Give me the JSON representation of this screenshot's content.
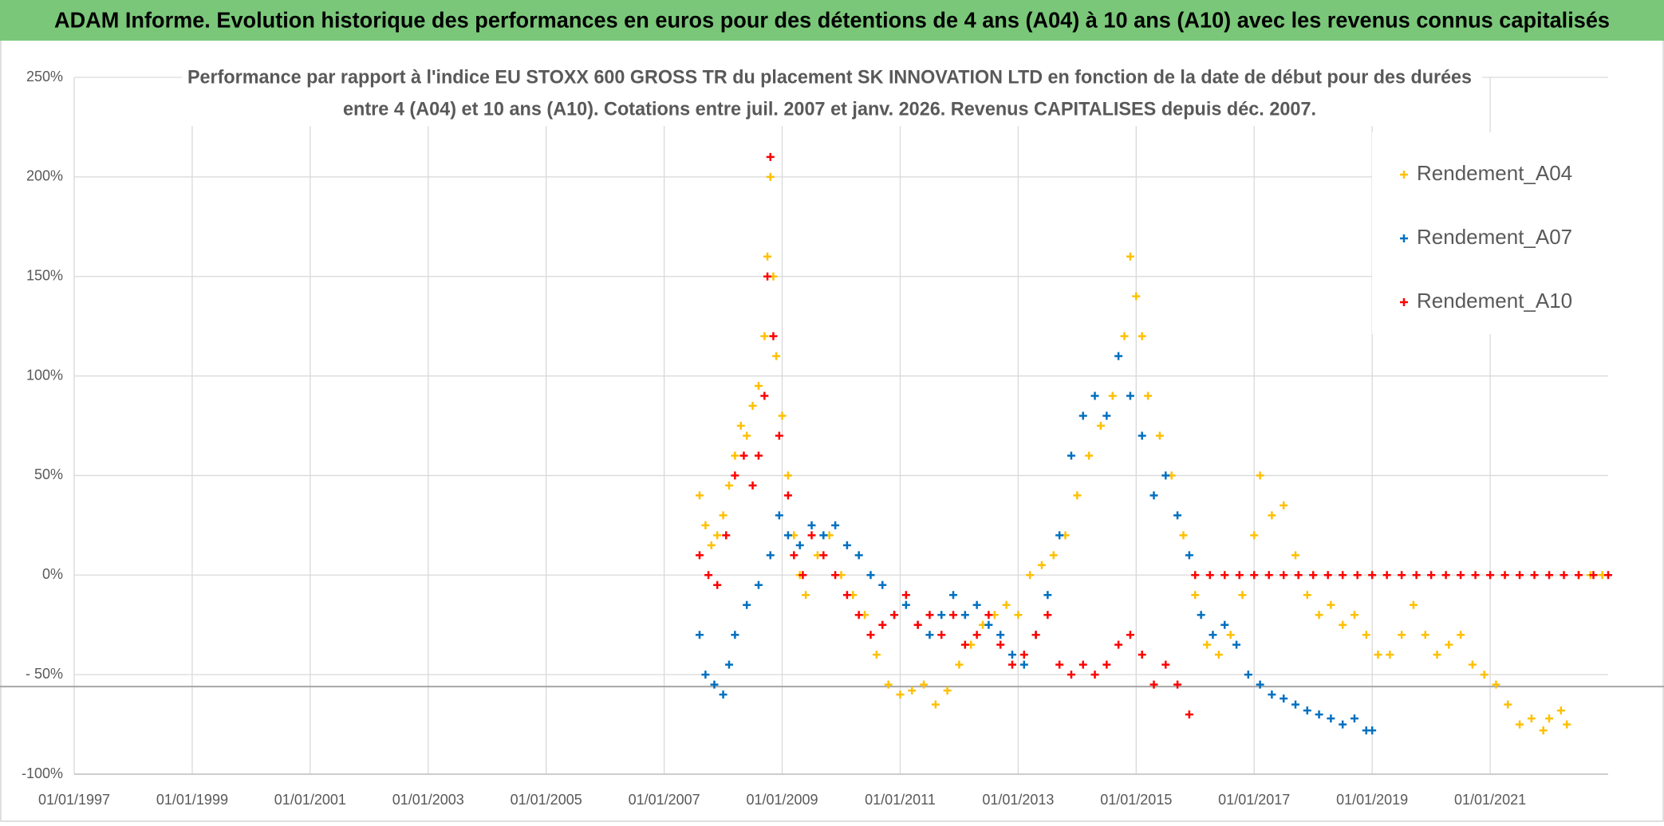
{
  "chart_data": {
    "type": "scatter",
    "title": "ADAM Informe. Evolution historique des performances en euros pour des détentions de 4 ans (A04) à 10 ans (A10) avec les revenus connus capitalisés",
    "subtitle": [
      "Performance par rapport à l'indice EU STOXX 600 GROSS TR  du placement SK INNOVATION LTD en fonction de la date de début pour des durées",
      "entre 4 (A04) et 10 ans (A10). Cotations entre juil. 2007 et janv. 2026. Revenus CAPITALISES depuis déc. 2007."
    ],
    "xlim": [
      1997,
      2023
    ],
    "xticks": [
      {
        "value": 1997,
        "label": "01/01/1997"
      },
      {
        "value": 1999,
        "label": "01/01/1999"
      },
      {
        "value": 2001,
        "label": "01/01/2001"
      },
      {
        "value": 2003,
        "label": "01/01/2003"
      },
      {
        "value": 2005,
        "label": "01/01/2005"
      },
      {
        "value": 2007,
        "label": "01/01/2007"
      },
      {
        "value": 2009,
        "label": "01/01/2009"
      },
      {
        "value": 2011,
        "label": "01/01/2011"
      },
      {
        "value": 2013,
        "label": "01/01/2013"
      },
      {
        "value": 2015,
        "label": "01/01/2015"
      },
      {
        "value": 2017,
        "label": "01/01/2017"
      },
      {
        "value": 2019,
        "label": "01/01/2019"
      },
      {
        "value": 2021,
        "label": "01/01/2021"
      }
    ],
    "ylim": [
      -100,
      250
    ],
    "yticks": [
      {
        "value": -100,
        "label": "-100%"
      },
      {
        "value": -50,
        "label": "- 50%"
      },
      {
        "value": 0,
        "label": "0%"
      },
      {
        "value": 50,
        "label": "50%"
      },
      {
        "value": 100,
        "label": "100%"
      },
      {
        "value": 150,
        "label": "150%"
      },
      {
        "value": 200,
        "label": "200%"
      },
      {
        "value": 250,
        "label": "250%"
      }
    ],
    "grid": true,
    "hline": -56,
    "legend": "upper right",
    "series": [
      {
        "name": "Rendement_A04",
        "color": "#FFC000",
        "x": [
          2007.6,
          2007.7,
          2007.8,
          2007.9,
          2008.0,
          2008.1,
          2008.2,
          2008.3,
          2008.4,
          2008.5,
          2008.6,
          2008.7,
          2008.75,
          2008.8,
          2008.85,
          2008.9,
          2009.0,
          2009.1,
          2009.2,
          2009.3,
          2009.4,
          2009.6,
          2009.8,
          2010.0,
          2010.2,
          2010.4,
          2010.6,
          2010.8,
          2011.0,
          2011.2,
          2011.4,
          2011.6,
          2011.8,
          2012.0,
          2012.2,
          2012.4,
          2012.6,
          2012.8,
          2013.0,
          2013.2,
          2013.4,
          2013.6,
          2013.8,
          2014.0,
          2014.2,
          2014.4,
          2014.6,
          2014.8,
          2014.9,
          2015.0,
          2015.1,
          2015.2,
          2015.4,
          2015.6,
          2015.8,
          2016.0,
          2016.2,
          2016.4,
          2016.6,
          2016.8,
          2017.0,
          2017.1,
          2017.3,
          2017.5,
          2017.7,
          2017.9,
          2018.1,
          2018.3,
          2018.5,
          2018.7,
          2018.9,
          2019.1,
          2019.3,
          2019.5,
          2019.7,
          2019.9,
          2020.1,
          2020.3,
          2020.5,
          2020.7,
          2020.9,
          2021.1,
          2021.3,
          2021.5,
          2021.7,
          2021.9,
          2022.0,
          2022.2,
          2022.3,
          2022.5,
          2022.7,
          2022.9
        ],
        "values": [
          40,
          25,
          15,
          20,
          30,
          45,
          60,
          75,
          70,
          85,
          95,
          120,
          160,
          200,
          150,
          110,
          80,
          50,
          20,
          0,
          -10,
          10,
          20,
          0,
          -10,
          -20,
          -40,
          -55,
          -60,
          -58,
          -55,
          -65,
          -58,
          -45,
          -35,
          -25,
          -20,
          -15,
          -20,
          0,
          5,
          10,
          20,
          40,
          60,
          75,
          90,
          120,
          160,
          140,
          120,
          90,
          70,
          50,
          20,
          -10,
          -35,
          -40,
          -30,
          -10,
          20,
          50,
          30,
          35,
          10,
          -10,
          -20,
          -15,
          -25,
          -20,
          -30,
          -40,
          -40,
          -30,
          -15,
          -30,
          -40,
          -35,
          -30,
          -45,
          -50,
          -55,
          -65,
          -75,
          -72,
          -78,
          -72,
          -68,
          -75,
          0,
          0,
          0
        ]
      },
      {
        "name": "Rendement_A07",
        "color": "#0070C0",
        "x": [
          2007.6,
          2007.7,
          2007.85,
          2008.0,
          2008.1,
          2008.2,
          2008.4,
          2008.6,
          2008.8,
          2008.95,
          2009.1,
          2009.3,
          2009.5,
          2009.7,
          2009.9,
          2010.1,
          2010.3,
          2010.5,
          2010.7,
          2010.9,
          2011.1,
          2011.3,
          2011.5,
          2011.7,
          2011.9,
          2012.1,
          2012.3,
          2012.5,
          2012.7,
          2012.9,
          2013.1,
          2013.3,
          2013.5,
          2013.7,
          2013.9,
          2014.1,
          2014.3,
          2014.5,
          2014.7,
          2014.9,
          2015.1,
          2015.3,
          2015.5,
          2015.7,
          2015.9,
          2016.1,
          2016.3,
          2016.5,
          2016.7,
          2016.9,
          2017.1,
          2017.3,
          2017.5,
          2017.7,
          2017.9,
          2018.1,
          2018.3,
          2018.5,
          2018.7,
          2018.9,
          2019.0
        ],
        "values": [
          -30,
          -50,
          -55,
          -60,
          -45,
          -30,
          -15,
          -5,
          10,
          30,
          20,
          15,
          25,
          20,
          25,
          15,
          10,
          0,
          -5,
          -20,
          -15,
          -25,
          -30,
          -20,
          -10,
          -20,
          -15,
          -25,
          -30,
          -40,
          -45,
          -30,
          -10,
          20,
          60,
          80,
          90,
          80,
          110,
          90,
          70,
          40,
          50,
          30,
          10,
          -20,
          -30,
          -25,
          -35,
          -50,
          -55,
          -60,
          -62,
          -65,
          -68,
          -70,
          -72,
          -75,
          -72,
          -78,
          -78
        ]
      },
      {
        "name": "Rendement_A10",
        "color": "#FF0000",
        "x": [
          2007.6,
          2007.75,
          2007.9,
          2008.05,
          2008.2,
          2008.35,
          2008.5,
          2008.6,
          2008.7,
          2008.75,
          2008.8,
          2008.85,
          2008.95,
          2009.1,
          2009.2,
          2009.35,
          2009.5,
          2009.7,
          2009.9,
          2010.1,
          2010.3,
          2010.5,
          2010.7,
          2010.9,
          2011.1,
          2011.3,
          2011.5,
          2011.7,
          2011.9,
          2012.1,
          2012.3,
          2012.5,
          2012.7,
          2012.9,
          2013.1,
          2013.3,
          2013.5,
          2013.7,
          2013.9,
          2014.1,
          2014.3,
          2014.5,
          2014.7,
          2014.9,
          2015.1,
          2015.3,
          2015.5,
          2015.7,
          2015.9,
          2016.0,
          2016.25,
          2016.5,
          2016.75,
          2017.0,
          2017.25,
          2017.5,
          2017.75,
          2018.0,
          2018.25,
          2018.5,
          2018.75,
          2019.0,
          2019.25,
          2019.5,
          2019.75,
          2020.0,
          2020.25,
          2020.5,
          2020.75,
          2021.0,
          2021.25,
          2021.5,
          2021.75,
          2022.0,
          2022.25,
          2022.5,
          2022.75,
          2023.0
        ],
        "values": [
          10,
          0,
          -5,
          20,
          50,
          60,
          45,
          60,
          90,
          150,
          210,
          120,
          70,
          40,
          10,
          0,
          20,
          10,
          0,
          -10,
          -20,
          -30,
          -25,
          -20,
          -10,
          -25,
          -20,
          -30,
          -20,
          -35,
          -30,
          -20,
          -35,
          -45,
          -40,
          -30,
          -20,
          -45,
          -50,
          -45,
          -50,
          -45,
          -35,
          -30,
          -40,
          -55,
          -45,
          -55,
          -70,
          0,
          0,
          0,
          0,
          0,
          0,
          0,
          0,
          0,
          0,
          0,
          0,
          0,
          0,
          0,
          0,
          0,
          0,
          0,
          0,
          0,
          0,
          0,
          0,
          0,
          0,
          0,
          0,
          0
        ]
      }
    ]
  }
}
